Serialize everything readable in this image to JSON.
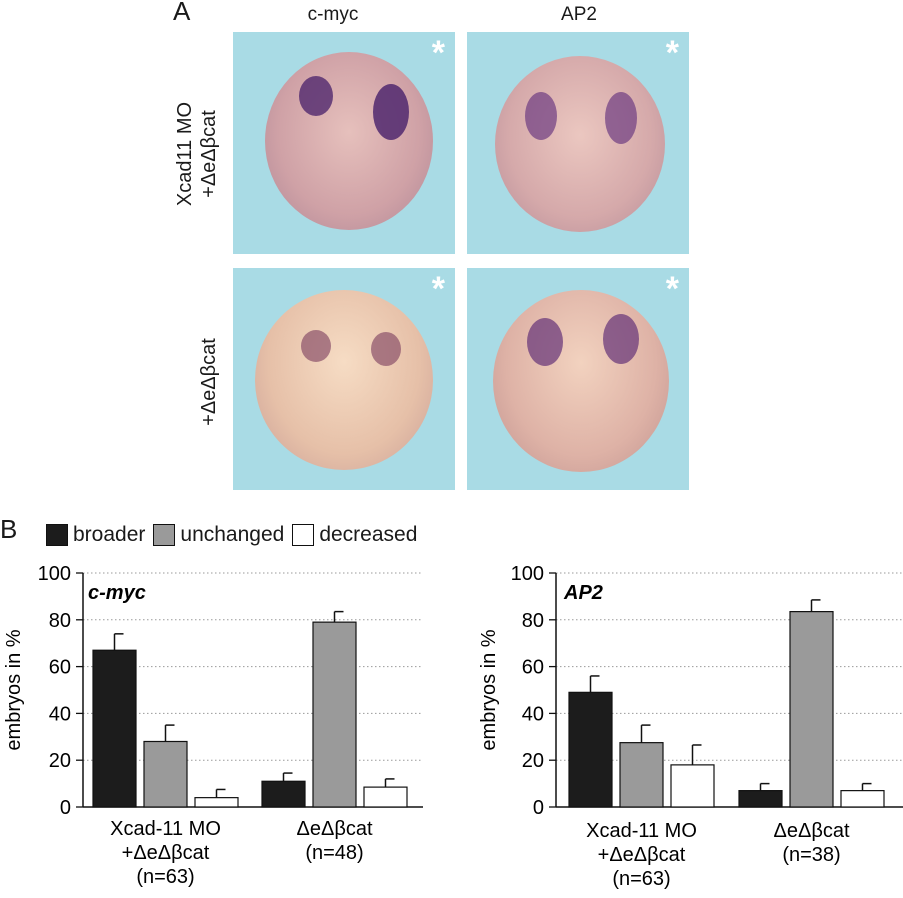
{
  "panel_a": {
    "letter": "A",
    "columns": [
      "c-myc",
      "AP2"
    ],
    "rows": [
      {
        "line1": "Xcad11 MO",
        "line2": "+ΔeΔβcat"
      },
      {
        "line1": "+ΔeΔβcat",
        "line2": ""
      }
    ],
    "asterisk": "*"
  },
  "panel_b": {
    "letter": "B"
  },
  "legend": [
    {
      "label": "broader",
      "color": "#1c1c1c"
    },
    {
      "label": "unchanged",
      "color": "#9a9a9a"
    },
    {
      "label": "decreased",
      "color": "#ffffff"
    }
  ],
  "chart_data": [
    {
      "type": "bar",
      "title": "c-myc",
      "ylabel": "embryos in %",
      "ylim": [
        0,
        100
      ],
      "yticks": [
        "0",
        "20",
        "40",
        "60",
        "80",
        "100"
      ],
      "grid": true,
      "groups": [
        {
          "lines": [
            "Xcad-11 MO",
            "+ΔeΔβcat",
            "(n=63)"
          ]
        },
        {
          "lines": [
            "ΔeΔβcat",
            "(n=48)"
          ]
        }
      ],
      "series": [
        {
          "name": "broader",
          "values": [
            67,
            11
          ],
          "errors": [
            7,
            3.5
          ]
        },
        {
          "name": "unchanged",
          "values": [
            28,
            79
          ],
          "errors": [
            7,
            4.5
          ]
        },
        {
          "name": "decreased",
          "values": [
            4,
            8.5
          ],
          "errors": [
            3.5,
            3.5
          ]
        }
      ]
    },
    {
      "type": "bar",
      "title": "AP2",
      "ylabel": "embryos in %",
      "ylim": [
        0,
        100
      ],
      "yticks": [
        "0",
        "20",
        "40",
        "60",
        "80",
        "100"
      ],
      "grid": true,
      "groups": [
        {
          "lines": [
            "Xcad-11 MO",
            "+ΔeΔβcat",
            "(n=63)"
          ]
        },
        {
          "lines": [
            "ΔeΔβcat",
            "(n=38)"
          ]
        }
      ],
      "series": [
        {
          "name": "broader",
          "values": [
            49,
            7
          ],
          "errors": [
            7,
            3
          ]
        },
        {
          "name": "unchanged",
          "values": [
            27.5,
            83.5
          ],
          "errors": [
            7.5,
            5
          ]
        },
        {
          "name": "decreased",
          "values": [
            18,
            7
          ],
          "errors": [
            8.5,
            3
          ]
        }
      ]
    }
  ]
}
